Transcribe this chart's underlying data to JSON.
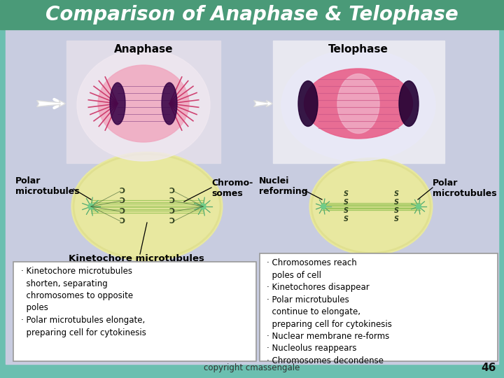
{
  "title": "Comparison of Anaphase & Telophase",
  "title_color": "#FFFFFF",
  "title_bg_color": "#4a9a78",
  "bg_color": "#6bbfb0",
  "main_bg_color": "#c8cce0",
  "copyright": "copyright cmassengale",
  "page_num": "46",
  "anaphase_label": "Anaphase",
  "telophase_label": "Telophase",
  "polar_micro_left": "Polar\nmicrotubules",
  "chromo_label": "Chromo-\nsomes",
  "nuclei_label": "Nuclei\nreforming",
  "polar_micro_right": "Polar\nmicrotubules",
  "kineto_label": "Kinetochore microtubules",
  "anaphase_bullet1": "· Kinetochore microtubules\n  shorten, separating\n  chromosomes to opposite\n  poles",
  "anaphase_bullet2": "· Polar microtubules elongate,\n  preparing cell for cytokinesis",
  "telophase_bullets": "· Chromosomes reach\n  poles of cell\n· Kinetochores disappear\n· Polar microtubules\n  continue to elongate,\n  preparing cell for cytokinesis\n· Nuclear membrane re-forms\n· Nucleolus reappears\n· Chromosomes decondense"
}
